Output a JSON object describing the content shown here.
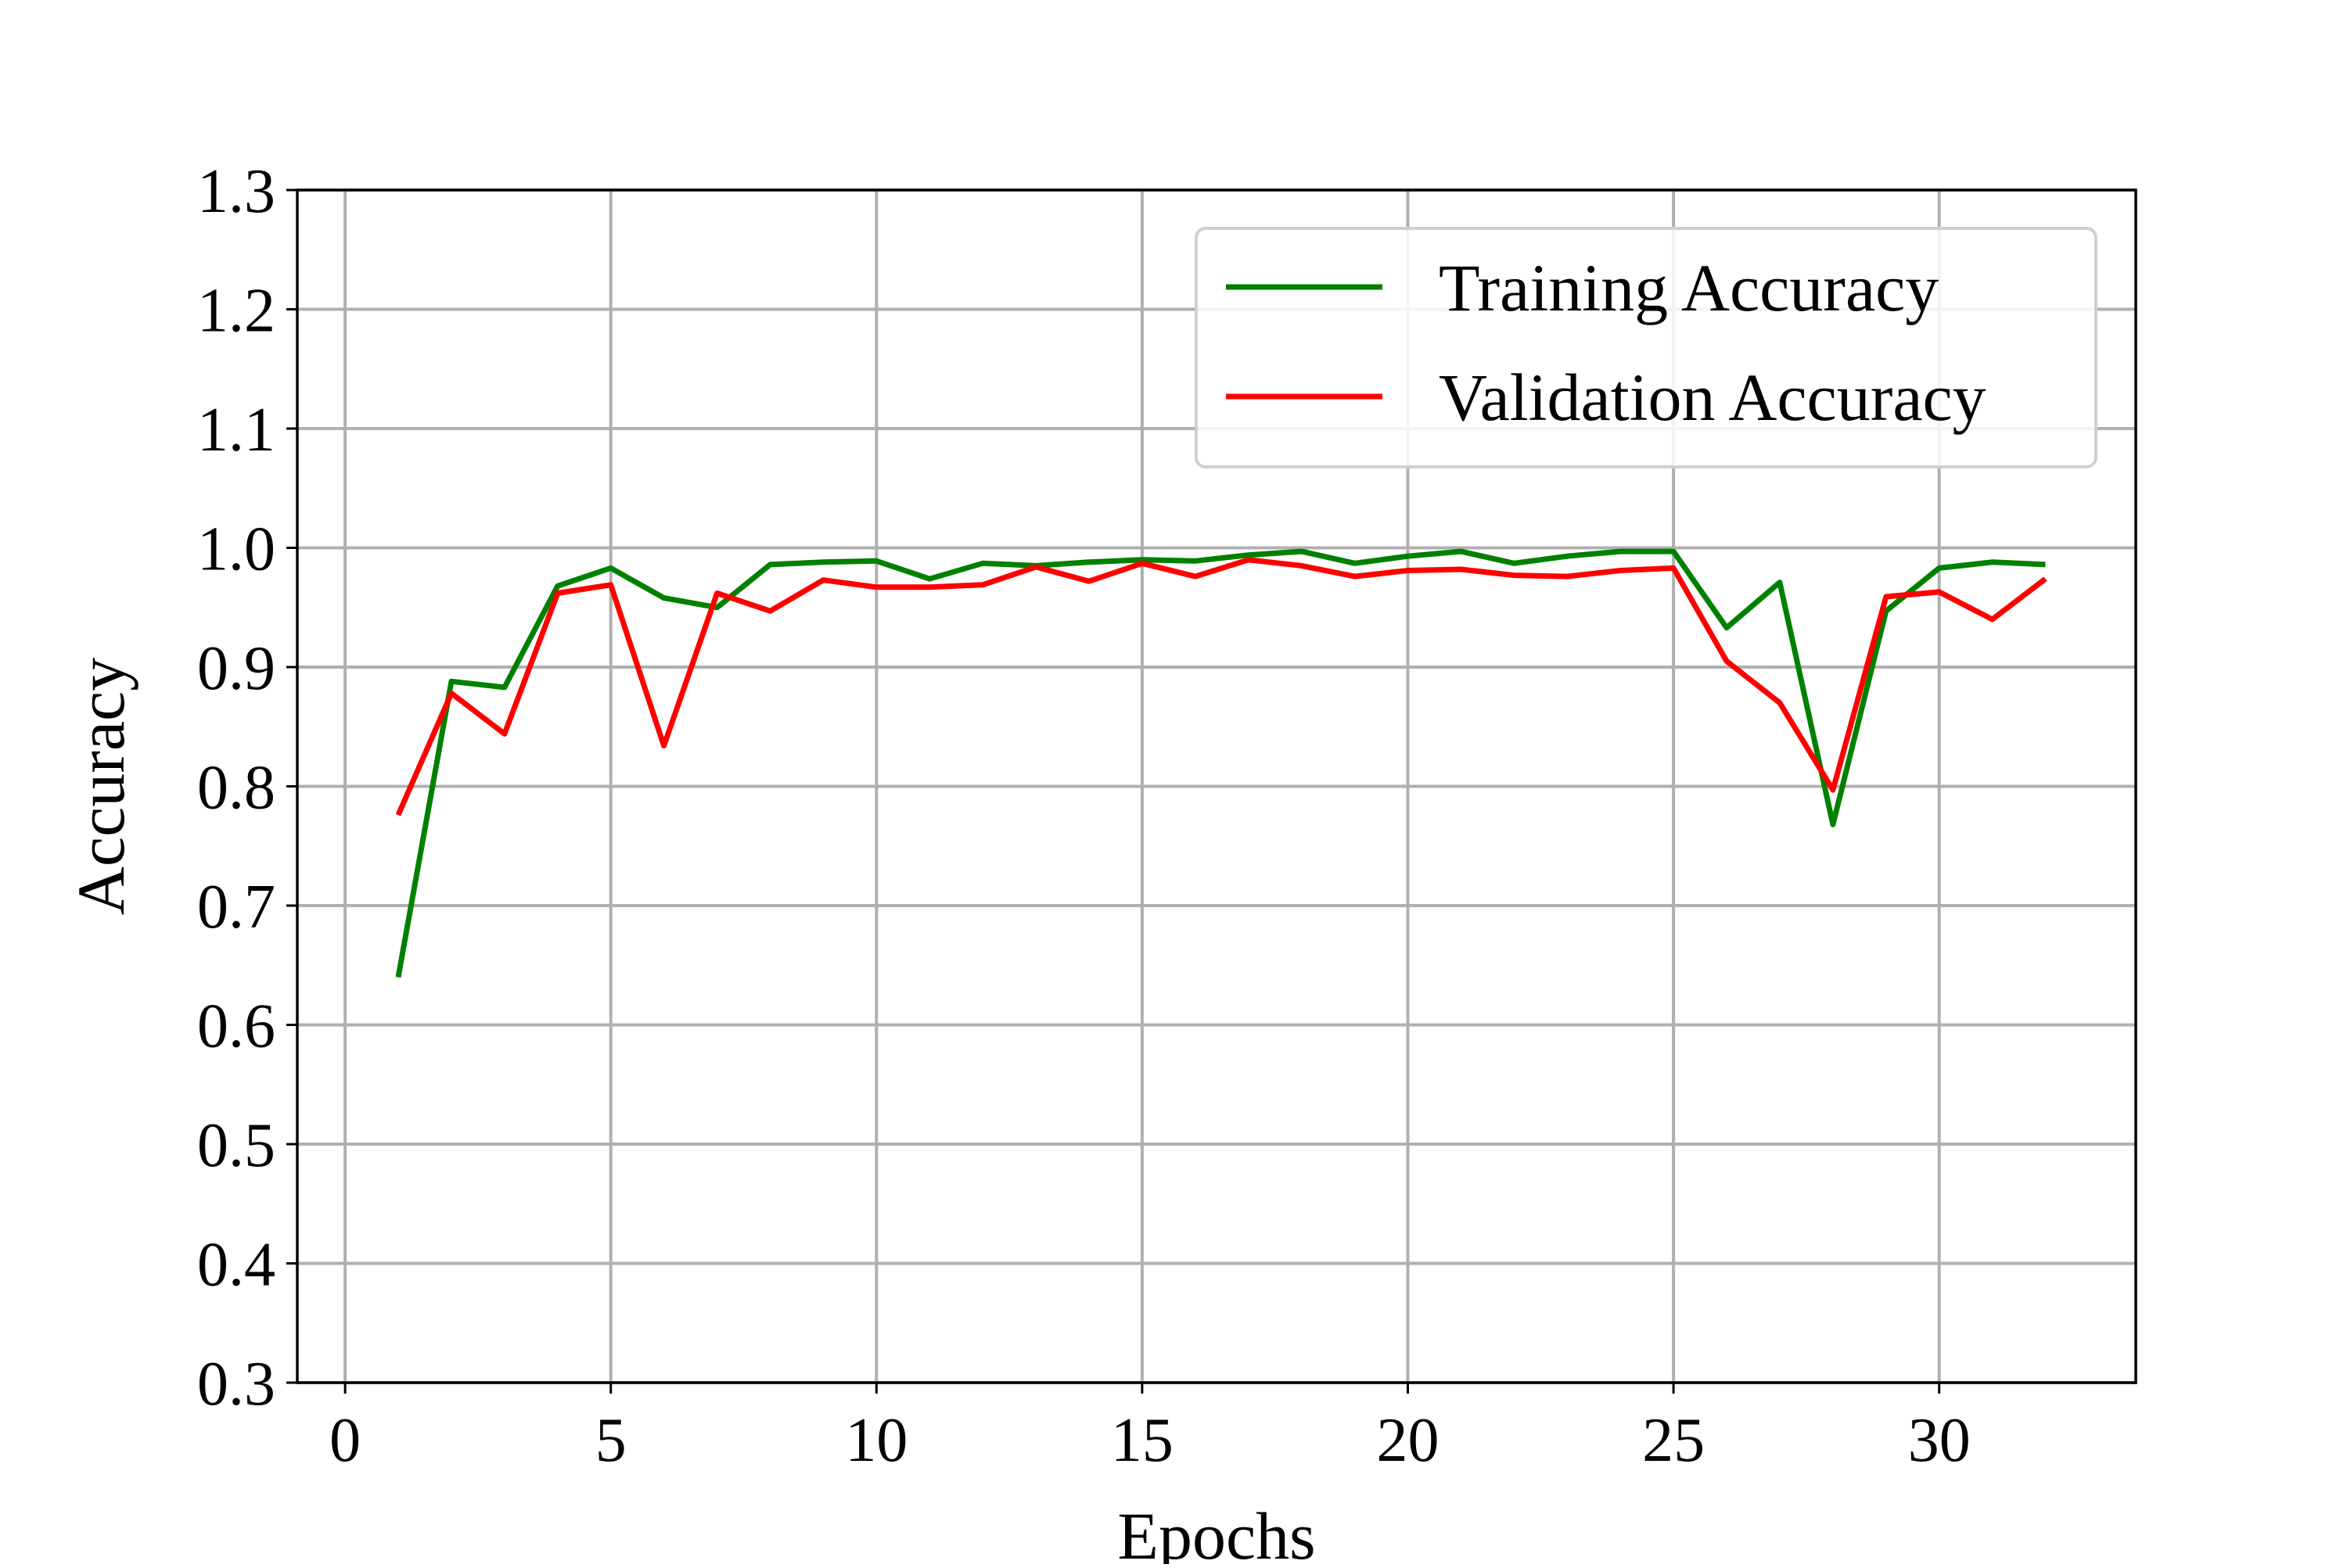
{
  "chart_data": {
    "type": "line",
    "title": "",
    "xlabel": "Epochs",
    "ylabel": "Accuracy",
    "xlim": [
      -0.9,
      33.7
    ],
    "ylim": [
      0.3,
      1.3
    ],
    "xticks": [
      0,
      5,
      10,
      15,
      20,
      25,
      30
    ],
    "xtick_labels": [
      "0",
      "5",
      "10",
      "15",
      "20",
      "25",
      "30"
    ],
    "yticks": [
      0.3,
      0.4,
      0.5,
      0.6,
      0.7,
      0.8,
      0.9,
      1.0,
      1.1,
      1.2,
      1.3
    ],
    "ytick_labels": [
      "0.3",
      "0.4",
      "0.5",
      "0.6",
      "0.7",
      "0.8",
      "0.9",
      "1.0",
      "1.1",
      "1.2",
      "1.3"
    ],
    "grid": true,
    "legend_position": "top-right",
    "x": [
      1,
      2,
      3,
      4,
      5,
      6,
      7,
      8,
      9,
      10,
      11,
      12,
      13,
      14,
      15,
      16,
      17,
      18,
      19,
      20,
      21,
      22,
      23,
      24,
      25,
      26,
      27,
      28,
      29,
      30,
      31,
      32
    ],
    "series": [
      {
        "name": "Training Accuracy",
        "color": "#008000",
        "values": [
          0.64,
          0.888,
          0.883,
          0.968,
          0.983,
          0.958,
          0.95,
          0.986,
          0.988,
          0.989,
          0.974,
          0.987,
          0.985,
          0.988,
          0.99,
          0.989,
          0.994,
          0.997,
          0.987,
          0.993,
          0.997,
          0.987,
          0.993,
          0.997,
          0.997,
          0.933,
          0.971,
          0.768,
          0.947,
          0.983,
          0.988,
          0.986
        ]
      },
      {
        "name": "Validation Accuracy",
        "color": "#ff0000",
        "values": [
          0.776,
          0.878,
          0.844,
          0.962,
          0.969,
          0.834,
          0.962,
          0.947,
          0.973,
          0.967,
          0.967,
          0.969,
          0.984,
          0.972,
          0.987,
          0.976,
          0.99,
          0.985,
          0.976,
          0.981,
          0.982,
          0.977,
          0.976,
          0.981,
          0.983,
          0.905,
          0.87,
          0.797,
          0.959,
          0.963,
          0.94,
          0.974
        ]
      }
    ]
  }
}
